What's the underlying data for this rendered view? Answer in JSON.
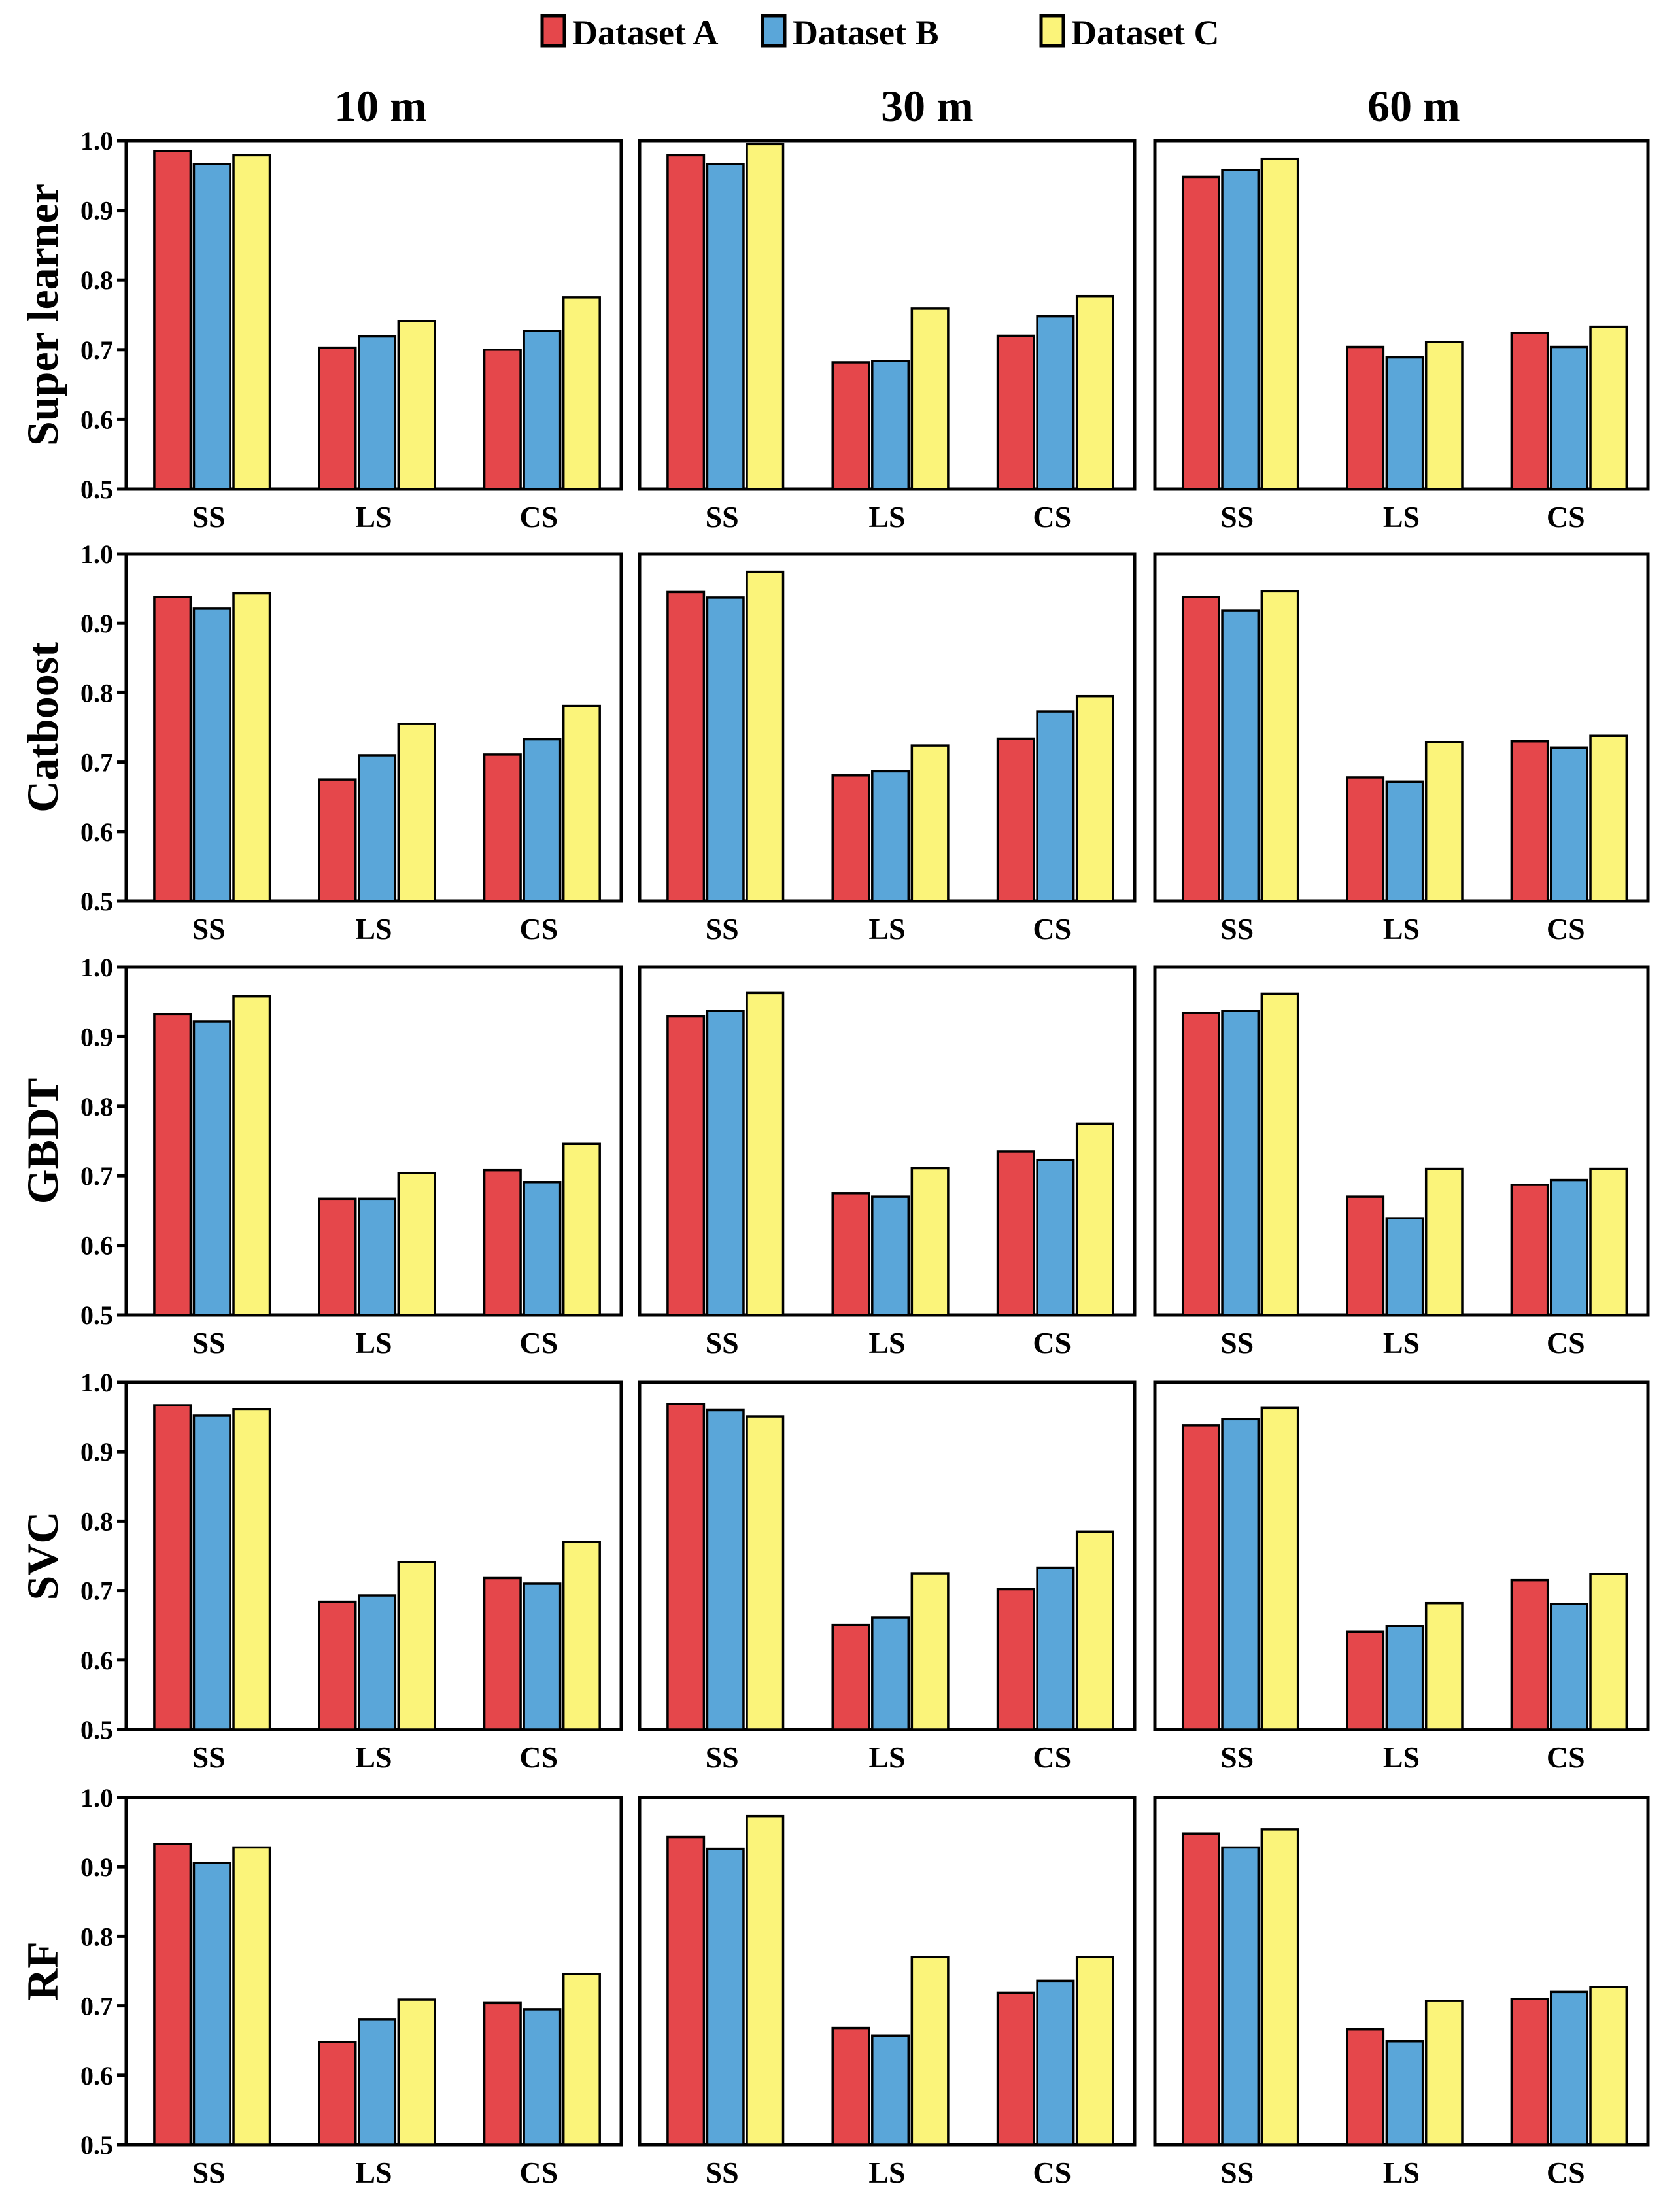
{
  "chart_data": {
    "type": "bar",
    "layout": "grid of 5 rows x 3 columns of grouped bar charts",
    "legend": {
      "position": "top-center",
      "entries": [
        {
          "label": "Dataset A",
          "color": "#e5474b"
        },
        {
          "label": "Dataset B",
          "color": "#5aa6d9"
        },
        {
          "label": "Dataset C",
          "color": "#fbf47a"
        }
      ]
    },
    "column_titles": [
      "10 m",
      "30 m",
      "60 m"
    ],
    "row_titles": [
      "Super learner",
      "Catboost",
      "GBDT",
      "SVC",
      "RF"
    ],
    "categories": [
      "SS",
      "LS",
      "CS"
    ],
    "ylim": [
      0.5,
      1.0
    ],
    "yticks": [
      "0.5",
      "0.6",
      "0.7",
      "0.8",
      "0.9",
      "1.0"
    ],
    "panels": [
      {
        "model": "Super learner",
        "resolution": "10 m",
        "series": [
          {
            "name": "Dataset A",
            "values": [
              0.985,
              0.703,
              0.7
            ]
          },
          {
            "name": "Dataset B",
            "values": [
              0.966,
              0.719,
              0.727
            ]
          },
          {
            "name": "Dataset C",
            "values": [
              0.979,
              0.741,
              0.775
            ]
          }
        ]
      },
      {
        "model": "Super learner",
        "resolution": "30 m",
        "series": [
          {
            "name": "Dataset A",
            "values": [
              0.979,
              0.682,
              0.72
            ]
          },
          {
            "name": "Dataset B",
            "values": [
              0.966,
              0.684,
              0.748
            ]
          },
          {
            "name": "Dataset C",
            "values": [
              0.995,
              0.759,
              0.777
            ]
          }
        ]
      },
      {
        "model": "Super learner",
        "resolution": "60 m",
        "series": [
          {
            "name": "Dataset A",
            "values": [
              0.948,
              0.704,
              0.724
            ]
          },
          {
            "name": "Dataset B",
            "values": [
              0.958,
              0.689,
              0.704
            ]
          },
          {
            "name": "Dataset C",
            "values": [
              0.974,
              0.711,
              0.733
            ]
          }
        ]
      },
      {
        "model": "Catboost",
        "resolution": "10 m",
        "series": [
          {
            "name": "Dataset A",
            "values": [
              0.938,
              0.675,
              0.711
            ]
          },
          {
            "name": "Dataset B",
            "values": [
              0.921,
              0.71,
              0.733
            ]
          },
          {
            "name": "Dataset C",
            "values": [
              0.943,
              0.755,
              0.781
            ]
          }
        ]
      },
      {
        "model": "Catboost",
        "resolution": "30 m",
        "series": [
          {
            "name": "Dataset A",
            "values": [
              0.945,
              0.681,
              0.734
            ]
          },
          {
            "name": "Dataset B",
            "values": [
              0.937,
              0.687,
              0.773
            ]
          },
          {
            "name": "Dataset C",
            "values": [
              0.974,
              0.724,
              0.795
            ]
          }
        ]
      },
      {
        "model": "Catboost",
        "resolution": "60 m",
        "series": [
          {
            "name": "Dataset A",
            "values": [
              0.938,
              0.678,
              0.73
            ]
          },
          {
            "name": "Dataset B",
            "values": [
              0.918,
              0.672,
              0.721
            ]
          },
          {
            "name": "Dataset C",
            "values": [
              0.946,
              0.729,
              0.738
            ]
          }
        ]
      },
      {
        "model": "GBDT",
        "resolution": "10 m",
        "series": [
          {
            "name": "Dataset A",
            "values": [
              0.932,
              0.667,
              0.708
            ]
          },
          {
            "name": "Dataset B",
            "values": [
              0.922,
              0.667,
              0.691
            ]
          },
          {
            "name": "Dataset C",
            "values": [
              0.958,
              0.704,
              0.746
            ]
          }
        ]
      },
      {
        "model": "GBDT",
        "resolution": "30 m",
        "series": [
          {
            "name": "Dataset A",
            "values": [
              0.929,
              0.675,
              0.735
            ]
          },
          {
            "name": "Dataset B",
            "values": [
              0.937,
              0.67,
              0.723
            ]
          },
          {
            "name": "Dataset C",
            "values": [
              0.963,
              0.711,
              0.775
            ]
          }
        ]
      },
      {
        "model": "GBDT",
        "resolution": "60 m",
        "series": [
          {
            "name": "Dataset A",
            "values": [
              0.934,
              0.67,
              0.687
            ]
          },
          {
            "name": "Dataset B",
            "values": [
              0.937,
              0.639,
              0.694
            ]
          },
          {
            "name": "Dataset C",
            "values": [
              0.962,
              0.71,
              0.71
            ]
          }
        ]
      },
      {
        "model": "SVC",
        "resolution": "10 m",
        "series": [
          {
            "name": "Dataset A",
            "values": [
              0.967,
              0.684,
              0.718
            ]
          },
          {
            "name": "Dataset B",
            "values": [
              0.952,
              0.693,
              0.71
            ]
          },
          {
            "name": "Dataset C",
            "values": [
              0.961,
              0.741,
              0.77
            ]
          }
        ]
      },
      {
        "model": "SVC",
        "resolution": "30 m",
        "series": [
          {
            "name": "Dataset A",
            "values": [
              0.969,
              0.651,
              0.702
            ]
          },
          {
            "name": "Dataset B",
            "values": [
              0.96,
              0.661,
              0.733
            ]
          },
          {
            "name": "Dataset C",
            "values": [
              0.951,
              0.725,
              0.785
            ]
          }
        ]
      },
      {
        "model": "SVC",
        "resolution": "60 m",
        "series": [
          {
            "name": "Dataset A",
            "values": [
              0.938,
              0.641,
              0.715
            ]
          },
          {
            "name": "Dataset B",
            "values": [
              0.947,
              0.649,
              0.681
            ]
          },
          {
            "name": "Dataset C",
            "values": [
              0.963,
              0.682,
              0.724
            ]
          }
        ]
      },
      {
        "model": "RF",
        "resolution": "10 m",
        "series": [
          {
            "name": "Dataset A",
            "values": [
              0.933,
              0.648,
              0.704
            ]
          },
          {
            "name": "Dataset B",
            "values": [
              0.906,
              0.68,
              0.695
            ]
          },
          {
            "name": "Dataset C",
            "values": [
              0.928,
              0.709,
              0.746
            ]
          }
        ]
      },
      {
        "model": "RF",
        "resolution": "30 m",
        "series": [
          {
            "name": "Dataset A",
            "values": [
              0.943,
              0.668,
              0.719
            ]
          },
          {
            "name": "Dataset B",
            "values": [
              0.926,
              0.657,
              0.736
            ]
          },
          {
            "name": "Dataset C",
            "values": [
              0.973,
              0.77,
              0.77
            ]
          }
        ]
      },
      {
        "model": "RF",
        "resolution": "60 m",
        "series": [
          {
            "name": "Dataset A",
            "values": [
              0.948,
              0.666,
              0.71
            ]
          },
          {
            "name": "Dataset B",
            "values": [
              0.928,
              0.649,
              0.72
            ]
          },
          {
            "name": "Dataset C",
            "values": [
              0.954,
              0.707,
              0.727
            ]
          }
        ]
      }
    ]
  }
}
